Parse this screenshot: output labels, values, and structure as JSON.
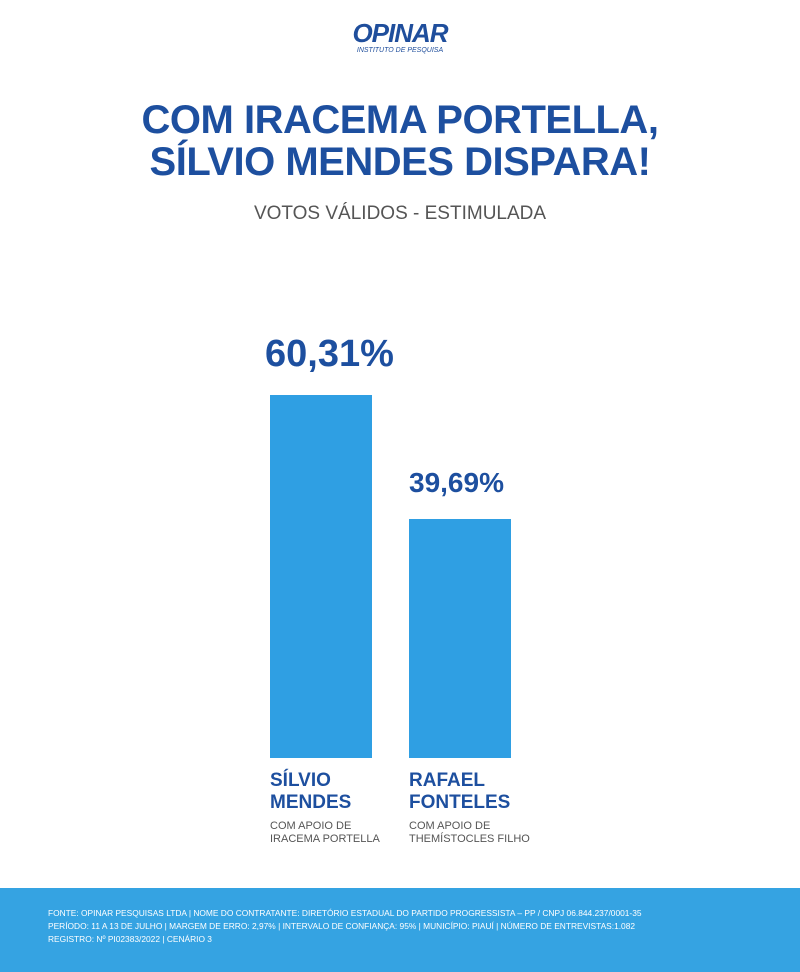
{
  "logo": {
    "name": "OPINAR",
    "tagline": "INSTITUTO DE PESQUISA"
  },
  "chart_data": {
    "type": "bar",
    "title": [
      "COM IRACEMA PORTELLA,",
      "SÍLVIO MENDES DISPARA!"
    ],
    "subtitle": "VOTOS VÁLIDOS - ESTIMULADA",
    "categories": [
      "SÍLVIO MENDES",
      "RAFAEL FONTELES"
    ],
    "category_notes": [
      "COM APOIO DE IRACEMA PORTELLA",
      "COM APOIO DE THEMÍSTOCLES FILHO"
    ],
    "values": [
      60.31,
      39.69
    ],
    "value_labels": [
      "60,31%",
      "39,69%"
    ],
    "color": "#2f9fe3"
  },
  "footer": [
    "FONTE: OPINAR PESQUISAS LTDA | NOME DO CONTRATANTE: DIRETÓRIO ESTADUAL DO PARTIDO PROGRESSISTA – PP / CNPJ 06.844.237/0001-35",
    "PERÍODO: 11 A 13 DE JULHO | MARGEM DE ERRO: 2,97% | INTERVALO DE CONFIANÇA: 95% | MUNICÍPIO: PIAUÍ | NÚMERO DE ENTREVISTAS:1.082",
    "REGISTRO: Nº PI02383/2022 | CENÁRIO 3"
  ]
}
